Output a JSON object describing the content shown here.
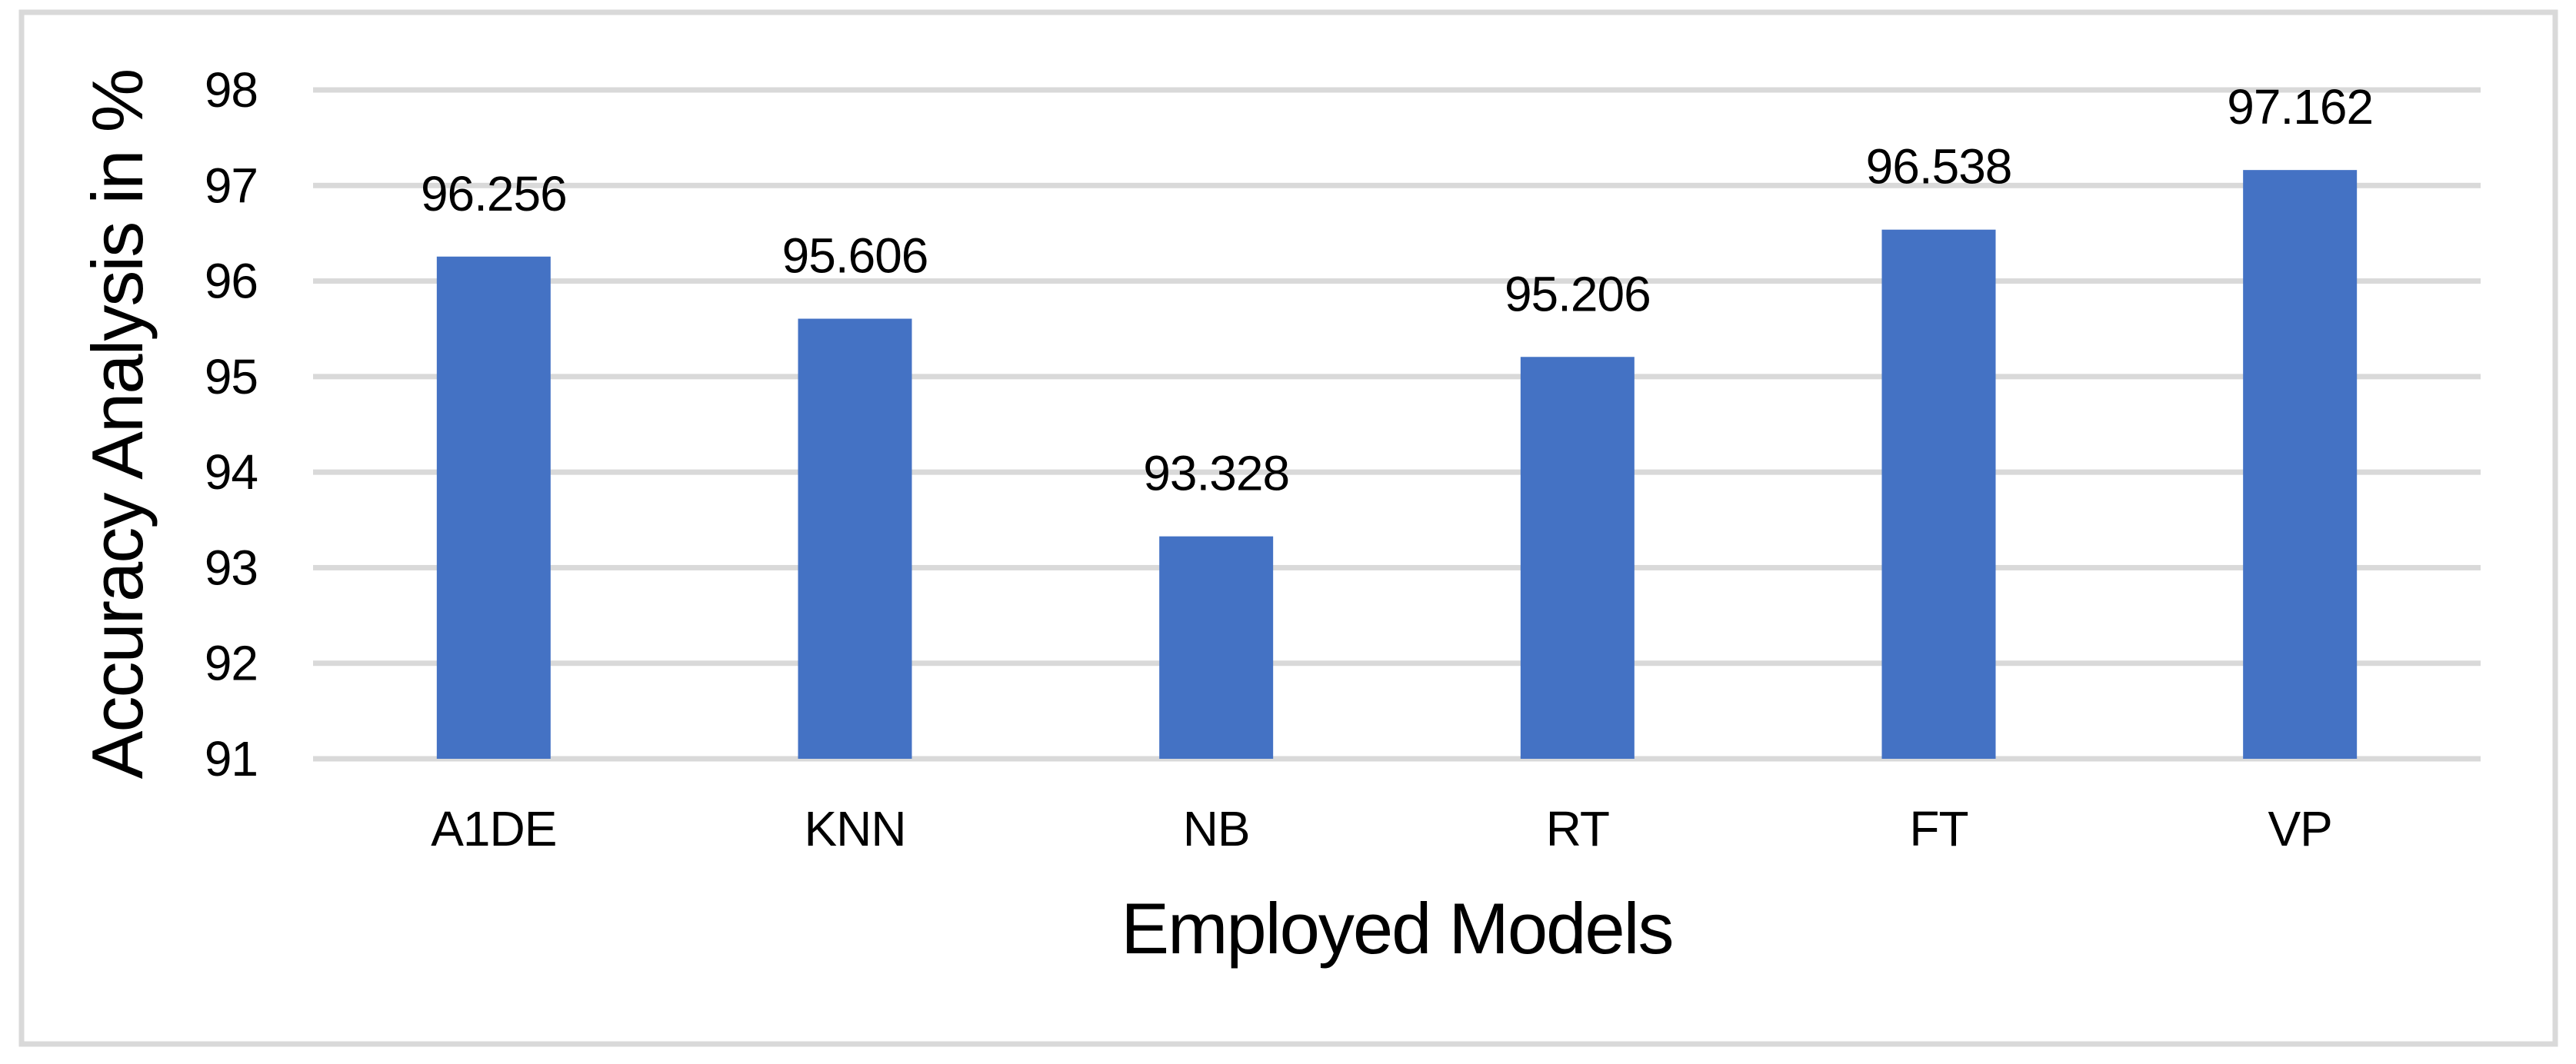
{
  "chart_data": {
    "type": "bar",
    "title": "",
    "categories": [
      "A1DE",
      "KNN",
      "NB",
      "RT",
      "FT",
      "VP"
    ],
    "values": [
      96.256,
      95.606,
      93.328,
      95.206,
      96.538,
      97.162
    ],
    "data_labels": [
      "96.256",
      "95.606",
      "93.328",
      "95.206",
      "96.538",
      "97.162"
    ],
    "xlabel": "Employed Models",
    "ylabel": "Accuracy Analysis in %",
    "ylim": [
      91,
      98
    ],
    "ytick_step": 1,
    "ytick_labels": [
      "91",
      "92",
      "93",
      "94",
      "95",
      "96",
      "97",
      "98"
    ],
    "grid": true,
    "legend_position": "none",
    "colors": {
      "bar": "#4472C4",
      "gridline": "#D9D9D9",
      "axis_line": "#D9D9D9",
      "frame_border": "#D9D9D9",
      "text": "#000000",
      "background": "#FFFFFF"
    }
  }
}
